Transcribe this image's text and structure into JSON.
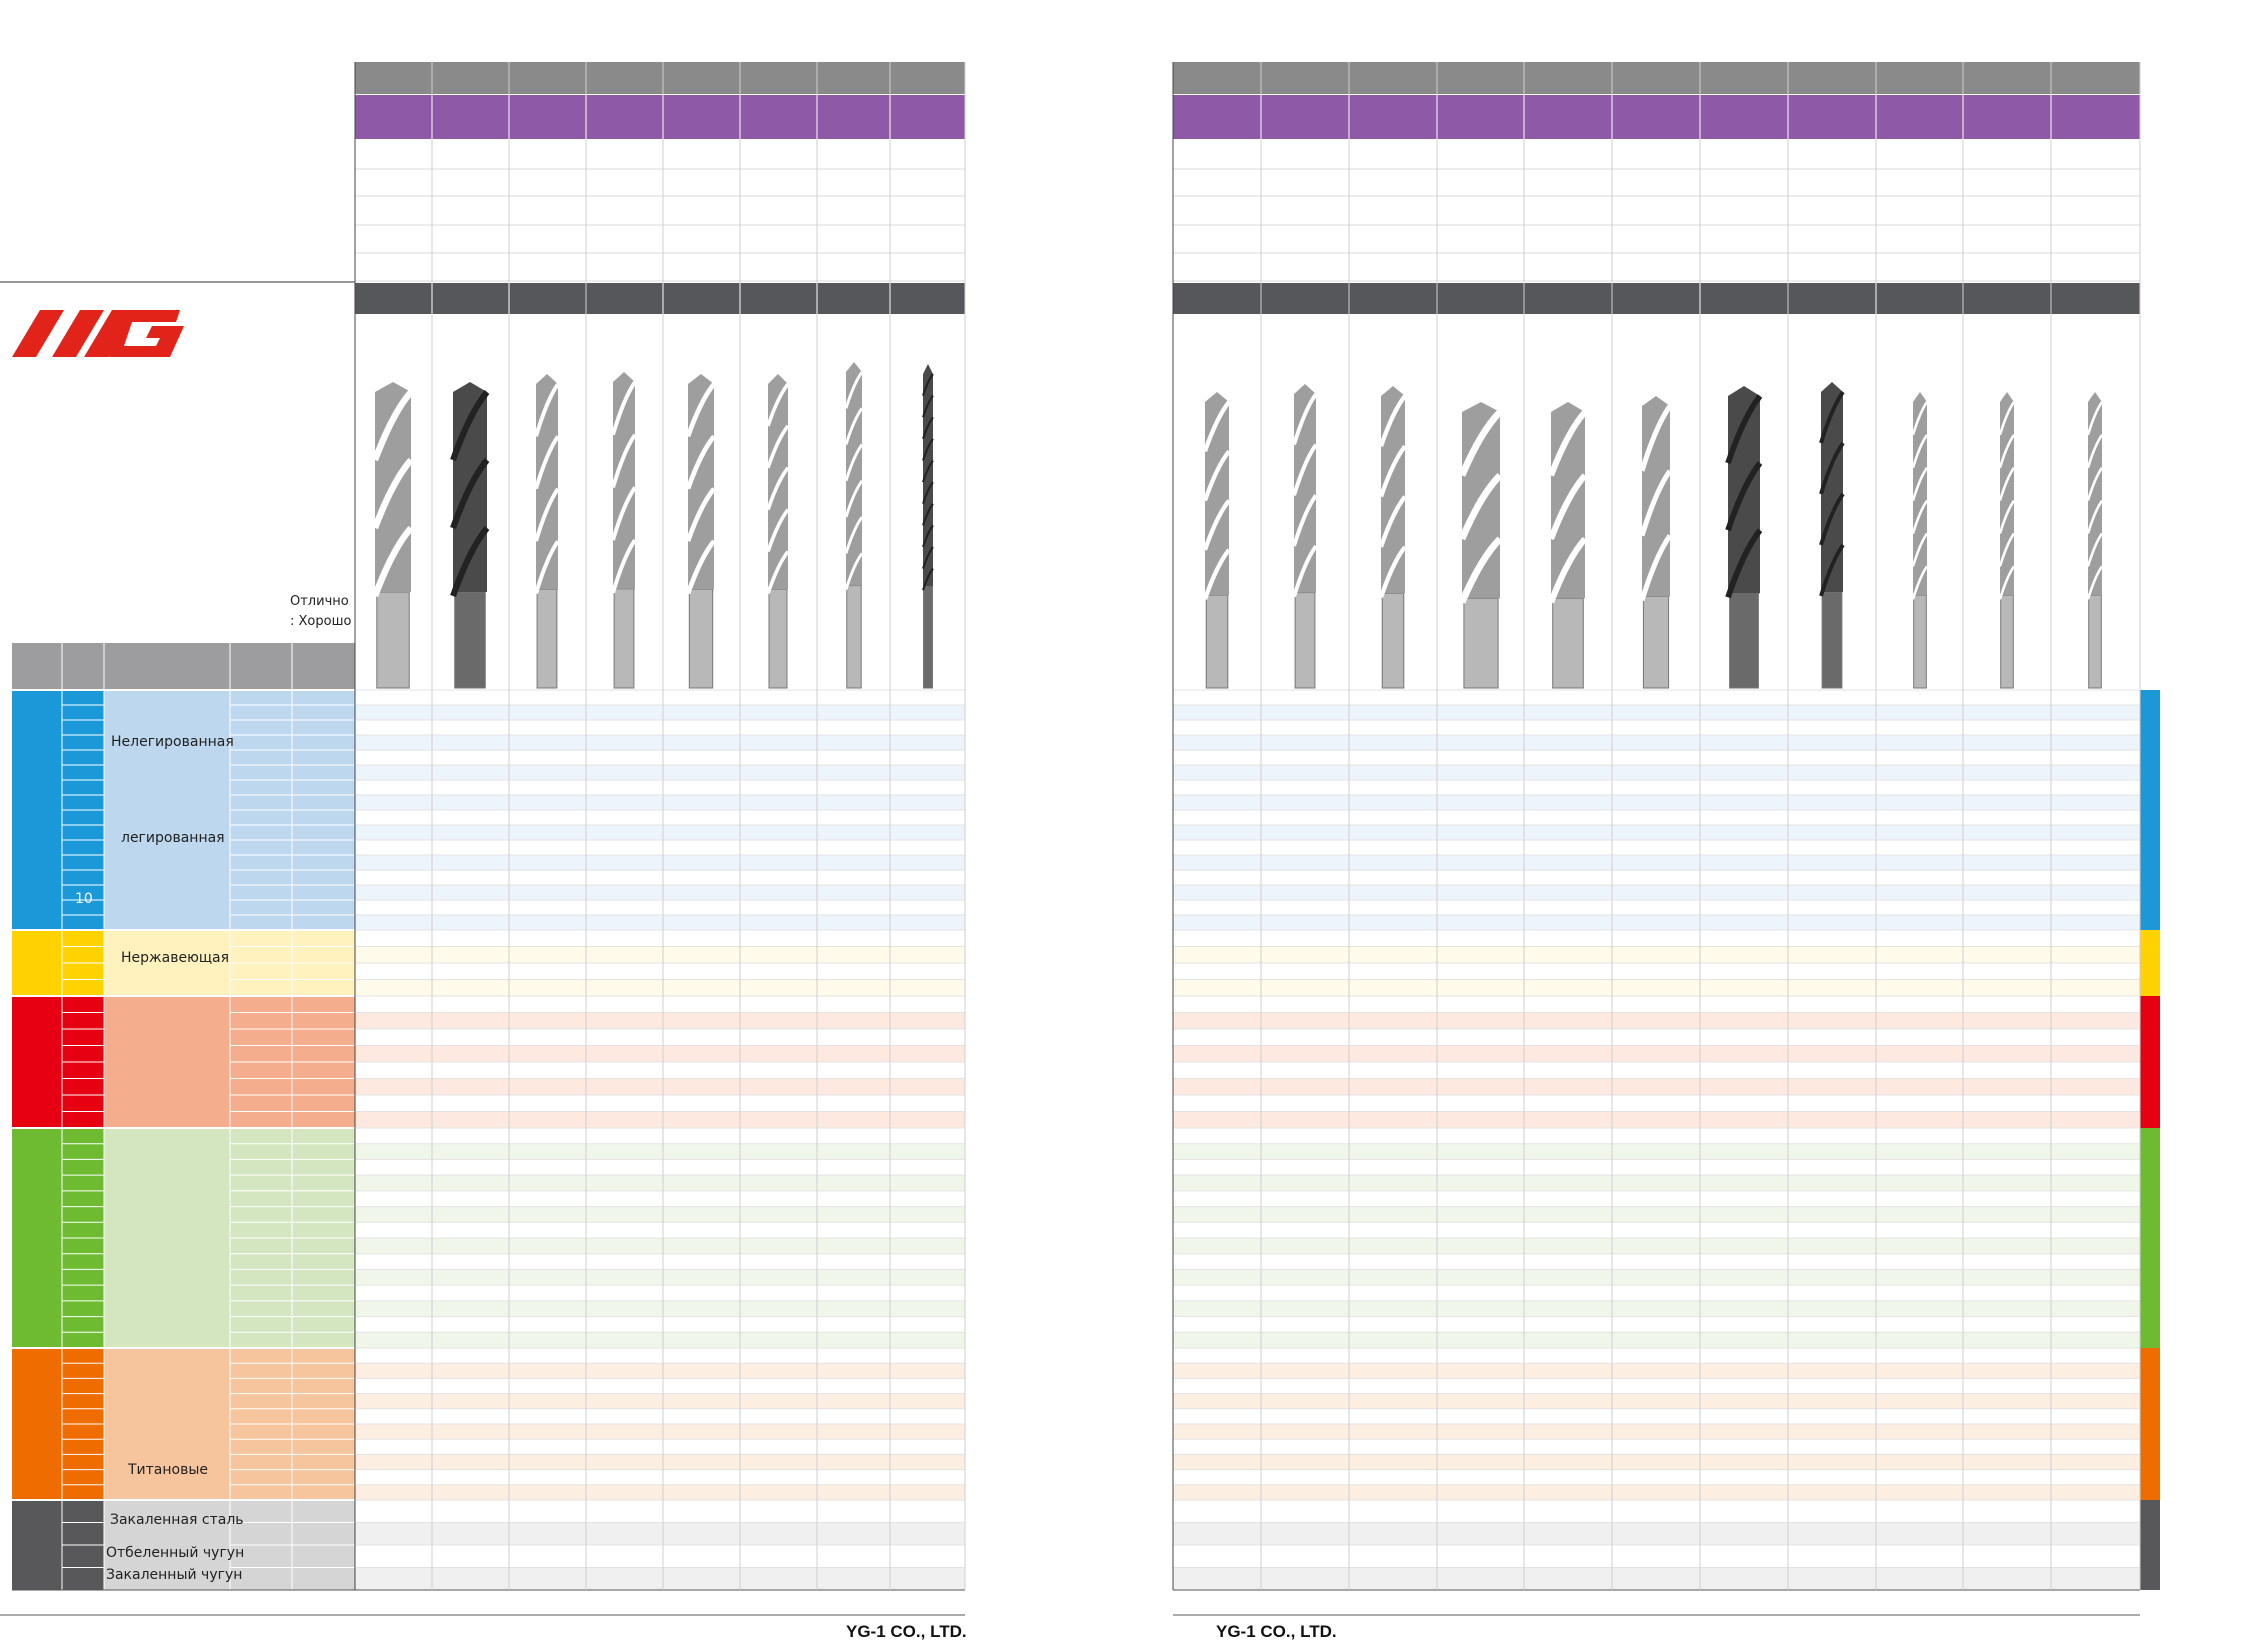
{
  "brand": {
    "logo_text": "YG",
    "footer_company": "YG-1 CO., LTD."
  },
  "legend": {
    "excellent": "Отлично",
    "good": ": Хорошо"
  },
  "materials": {
    "group_number_10": "10",
    "steel_unalloyed": "Нелегированная",
    "steel_alloyed": "легированная",
    "stainless": "Нержавеющая",
    "titanium": "Титановые",
    "hardened_steel": "Закаленная сталь",
    "chilled_cast_iron": "Отбеленный чугун",
    "hardened_cast_iron": "Закаленный чугун"
  },
  "colors": {
    "header_gray": "#8a8a8a",
    "header_purple": "#8e5aa7",
    "header_dark": "#55575a",
    "steel_blue": "#1a98d8",
    "stainless_yellow": "#ffd200",
    "cast_iron_red": "#e60012",
    "nonferrous_green": "#6ebb32",
    "superalloy_orange": "#ef6c00",
    "hard_gray": "#58585a",
    "logo_red": "#e2231a"
  }
}
